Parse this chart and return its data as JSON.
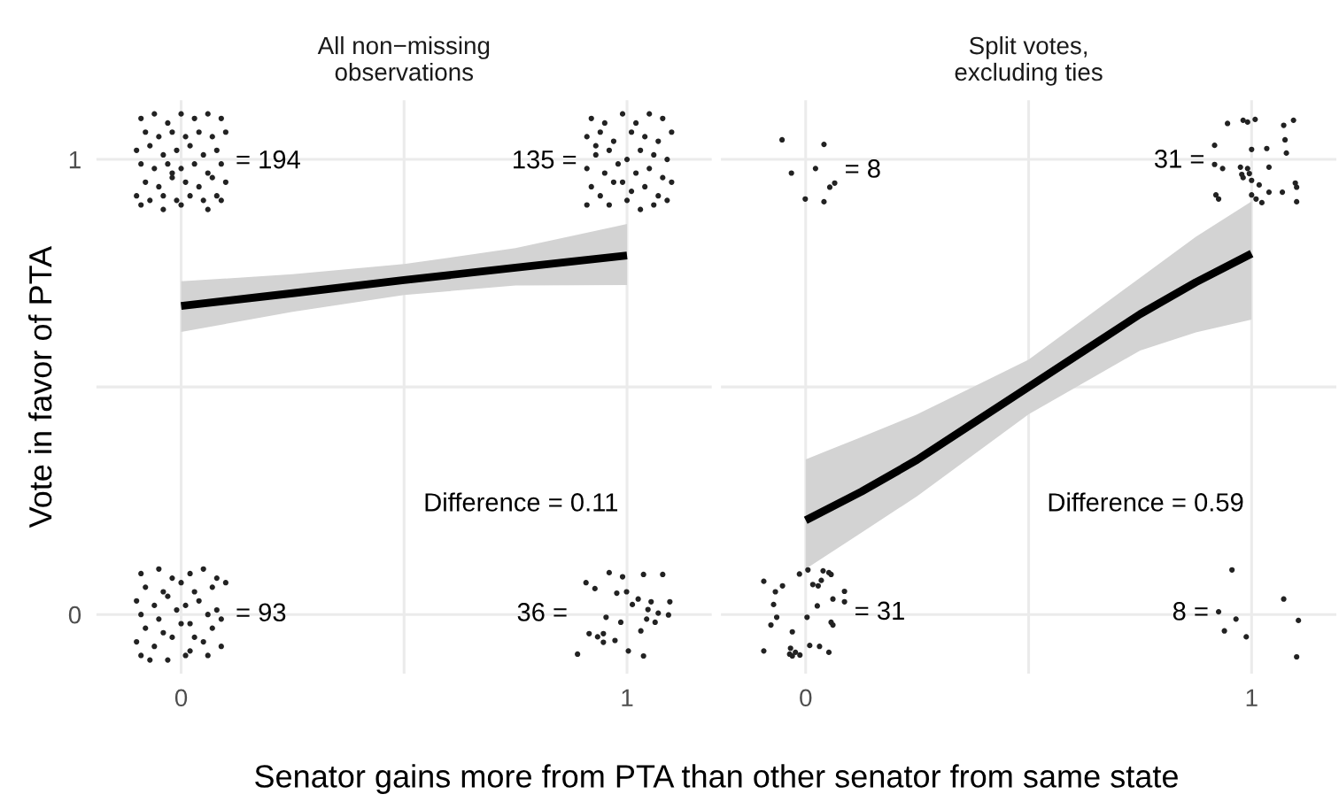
{
  "chart_data": [
    {
      "type": "scatter",
      "title": "All non−missing\nobservations",
      "ylabel": "Vote in favor of PTA",
      "xlabel": "Senator gains more from PTA than other senator from same state",
      "xlim": [
        -0.19,
        1.19
      ],
      "ylim": [
        -0.13,
        1.13
      ],
      "xticks": [
        0,
        {
          "value": 0.5,
          "label": null
        },
        1
      ],
      "yticks": [
        0,
        {
          "value": 0.5,
          "label": null
        },
        1
      ],
      "grid": true,
      "marker": "circle",
      "series": [
        {
          "color": "#222222",
          "x": [
            -0.09,
            -0.06,
            -0.03,
            0.0,
            0.03,
            0.06,
            0.09,
            -0.08,
            -0.05,
            -0.02,
            0.01,
            0.04,
            0.07,
            0.1,
            -0.1,
            -0.07,
            -0.04,
            -0.01,
            0.02,
            0.05,
            0.08,
            -0.09,
            -0.06,
            -0.03,
            0.0,
            0.03,
            0.06,
            0.09,
            -0.08,
            -0.05,
            -0.02,
            0.01,
            0.04,
            0.07,
            0.1,
            -0.1,
            -0.07,
            -0.04,
            -0.01,
            0.02,
            0.05,
            0.08,
            -0.09,
            -0.04,
            0.0,
            0.06,
            0.09,
            -0.02
          ],
          "values": [
            1.09,
            1.1,
            1.08,
            1.1,
            1.09,
            1.1,
            1.09,
            1.06,
            1.05,
            1.06,
            1.05,
            1.06,
            1.05,
            1.06,
            1.02,
            1.03,
            1.01,
            1.02,
            1.03,
            1.01,
            1.02,
            0.99,
            0.98,
            0.99,
            0.98,
            0.99,
            0.97,
            0.99,
            0.95,
            0.94,
            0.96,
            0.95,
            0.94,
            0.96,
            0.95,
            0.92,
            0.91,
            0.92,
            0.91,
            0.92,
            0.91,
            0.92,
            0.9,
            0.89,
            0.9,
            0.89,
            0.91,
            0.97
          ]
        },
        {
          "color": "#222222",
          "x": [
            0.92,
            0.95,
            0.99,
            1.02,
            1.05,
            1.08,
            0.91,
            0.94,
            0.97,
            1.01,
            1.04,
            1.07,
            1.1,
            0.93,
            0.96,
            1.0,
            1.03,
            1.06,
            1.09,
            0.91,
            0.95,
            0.98,
            1.02,
            1.05,
            1.08,
            0.92,
            0.94,
            0.99,
            1.01,
            1.04,
            1.07,
            1.1,
            0.91,
            0.96,
            1.0,
            1.03,
            1.06,
            1.09,
            0.93,
            0.97
          ],
          "values": [
            1.09,
            1.08,
            1.1,
            1.08,
            1.1,
            1.09,
            1.05,
            1.06,
            1.04,
            1.06,
            1.05,
            1.04,
            1.06,
            1.01,
            1.02,
            1.0,
            1.02,
            1.01,
            1.0,
            0.98,
            0.97,
            0.99,
            0.97,
            0.98,
            0.96,
            0.94,
            0.92,
            0.95,
            0.93,
            0.94,
            0.92,
            0.95,
            0.9,
            0.9,
            0.91,
            0.89,
            0.9,
            0.91,
            1.03,
            0.95
          ]
        },
        {
          "color": "#222222",
          "x": [
            -0.09,
            -0.05,
            -0.02,
            0.02,
            0.05,
            0.08,
            -0.08,
            -0.04,
            0.0,
            0.03,
            0.07,
            0.1,
            -0.1,
            -0.06,
            -0.03,
            0.01,
            0.04,
            0.08,
            -0.09,
            -0.05,
            -0.01,
            0.02,
            0.06,
            0.09,
            -0.08,
            -0.04,
            0.0,
            0.03,
            0.07,
            -0.1,
            -0.06,
            -0.02,
            0.02,
            0.05,
            0.09,
            -0.09,
            -0.03,
            0.01,
            0.06,
            -0.07
          ],
          "values": [
            0.09,
            0.1,
            0.08,
            0.09,
            0.1,
            0.08,
            0.06,
            0.05,
            0.07,
            0.05,
            0.06,
            0.07,
            0.03,
            0.02,
            0.04,
            0.02,
            0.03,
            0.01,
            0.0,
            -0.01,
            0.01,
            -0.02,
            0.0,
            -0.01,
            -0.03,
            -0.04,
            -0.02,
            -0.05,
            -0.03,
            -0.06,
            -0.07,
            -0.05,
            -0.08,
            -0.06,
            -0.07,
            -0.09,
            -0.1,
            -0.09,
            -0.09,
            -0.1
          ]
        },
        {
          "color": "#222222",
          "x": [
            0.908,
            0.96,
            0.99,
            1.037,
            1.08,
            0.928,
            0.977,
            0.999,
            1.025,
            1.054,
            1.096,
            1.047,
            1.07,
            1.093,
            1.012,
            0.953,
            0.986,
            1.044,
            1.063,
            0.915,
            0.934,
            0.947,
            0.973,
            1.031,
            1.003,
            0.889,
            1.037,
            0.947
          ],
          "values": [
            0.07,
            0.092,
            0.083,
            0.088,
            0.088,
            0.057,
            0.047,
            0.05,
            0.034,
            0.028,
            0.028,
            0.011,
            0.003,
            -0.001,
            0.022,
            -0.006,
            -0.017,
            -0.01,
            -0.017,
            -0.042,
            -0.049,
            -0.061,
            -0.057,
            -0.036,
            -0.08,
            -0.087,
            -0.091,
            -0.042
          ]
        },
        {
          "type": "line",
          "marker": "none",
          "color": "#000000",
          "x": [
            0,
            0.25,
            0.5,
            0.75,
            1
          ],
          "values": [
            0.678,
            0.706,
            0.735,
            0.762,
            0.789
          ],
          "lower": [
            0.621,
            0.665,
            0.702,
            0.723,
            0.724
          ],
          "upper": [
            0.732,
            0.748,
            0.77,
            0.805,
            0.858
          ]
        }
      ],
      "annotations": [
        "= 194",
        "135 =",
        "= 93",
        "36 =",
        "Difference = 0.11"
      ]
    },
    {
      "type": "scatter",
      "title": "Split votes,\nexcluding ties",
      "xlim": [
        -0.19,
        1.19
      ],
      "ylim": [
        -0.13,
        1.13
      ],
      "xticks": [
        0,
        {
          "value": 0.5,
          "label": null
        },
        1
      ],
      "yticks": [
        0,
        {
          "value": 0.5,
          "label": null
        },
        1
      ],
      "grid": true,
      "marker": "circle",
      "tick_labels": "x",
      "series": [
        {
          "color": "#222222",
          "x": [
            -0.053,
            0.041,
            -0.032,
            0.022,
            0.054,
            0.065,
            -0.001,
            0.041
          ],
          "values": [
            1.043,
            1.033,
            0.97,
            0.98,
            0.939,
            0.948,
            0.913,
            0.907
          ]
        },
        {
          "color": "#222222",
          "x": [
            0.946,
            0.981,
            0.991,
            1.008,
            1.072,
            1.094,
            0.917,
            1.0,
            1.034,
            1.075,
            1.078,
            0.917,
            0.935,
            0.975,
            0.991,
            0.981,
            1.0,
            1.039,
            0.978,
            1.017,
            1.039,
            1.069,
            1.098,
            1.101,
            1.101,
            0.92,
            0.926,
            1.0,
            1.01,
            1.023,
            0.995
          ],
          "values": [
            1.079,
            1.086,
            1.082,
            1.088,
            1.075,
            1.086,
            1.031,
            1.022,
            1.024,
            1.043,
            1.014,
            0.989,
            0.98,
            0.983,
            0.98,
            0.96,
            0.954,
            0.983,
            0.967,
            0.944,
            0.928,
            0.928,
            0.948,
            0.939,
            0.907,
            0.922,
            0.913,
            0.922,
            0.913,
            0.905,
            0.969
          ]
        },
        {
          "color": "#222222",
          "x": [
            -0.094,
            -0.068,
            -0.052,
            -0.014,
            0.005,
            0.039,
            0.057,
            0.016,
            0.028,
            0.035,
            0.087,
            0.061,
            0.087,
            -0.072,
            -0.065,
            -0.078,
            0.003,
            0.026,
            0.057,
            -0.03,
            -0.094,
            -0.034,
            -0.03,
            -0.013,
            0.009,
            0.031,
            0.052,
            -0.023,
            0.052,
            0.061,
            -0.036
          ],
          "values": [
            0.073,
            0.05,
            0.063,
            0.089,
            0.098,
            0.096,
            0.088,
            0.066,
            0.063,
            0.075,
            0.051,
            0.034,
            0.028,
            0.022,
            -0.006,
            -0.023,
            -0.006,
            0.019,
            -0.017,
            -0.038,
            -0.08,
            -0.074,
            -0.091,
            -0.089,
            -0.068,
            -0.07,
            -0.083,
            -0.083,
            0.092,
            -0.023,
            -0.087
          ]
        },
        {
          "color": "#222222",
          "x": [
            0.956,
            0.926,
            0.965,
            0.939,
            0.988,
            1.072,
            1.105,
            1.101
          ],
          "values": [
            0.098,
            0.006,
            -0.01,
            -0.036,
            -0.049,
            0.034,
            -0.013,
            -0.093
          ]
        },
        {
          "type": "line",
          "marker": "none",
          "color": "#000000",
          "x": [
            0,
            0.125,
            0.25,
            0.375,
            0.5,
            0.625,
            0.75,
            0.875,
            1
          ],
          "values": [
            0.207,
            0.27,
            0.34,
            0.42,
            0.5,
            0.58,
            0.66,
            0.73,
            0.793
          ],
          "lower": [
            0.1,
            0.18,
            0.26,
            0.35,
            0.44,
            0.51,
            0.58,
            0.62,
            0.648
          ],
          "upper": [
            0.341,
            0.39,
            0.44,
            0.5,
            0.56,
            0.65,
            0.74,
            0.83,
            0.908
          ]
        }
      ],
      "annotations": [
        "= 8",
        "31 =",
        "= 31",
        "8 =",
        "Difference = 0.59"
      ]
    }
  ]
}
